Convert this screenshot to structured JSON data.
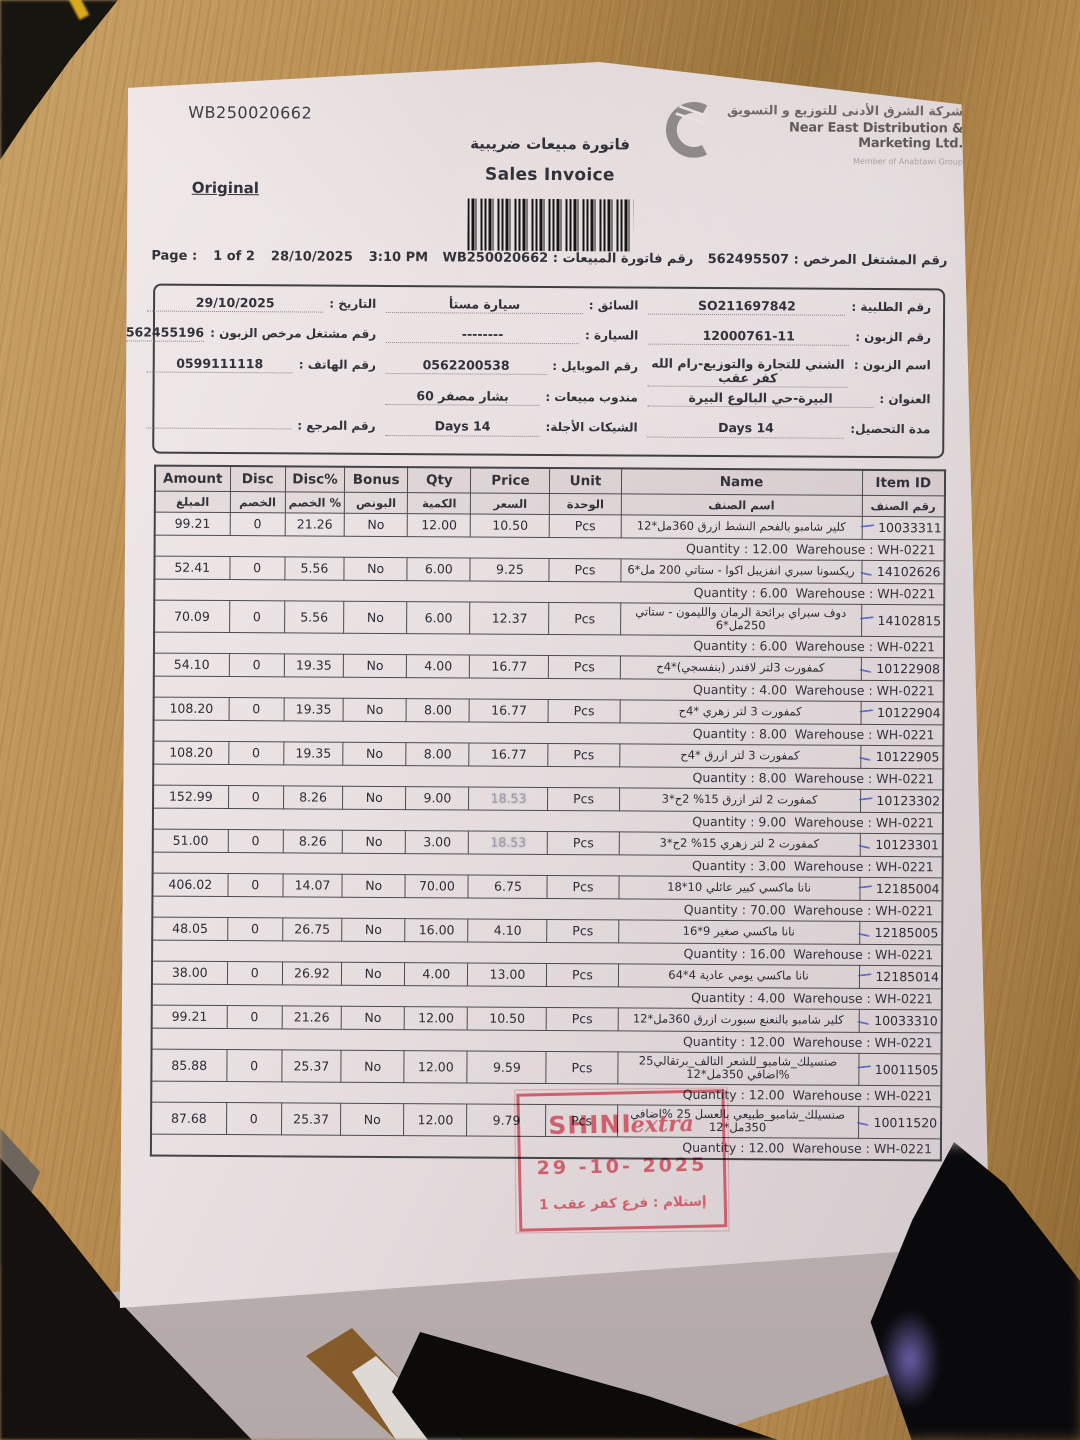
{
  "colors": {
    "ink": "#32323b",
    "stamp": "#cc5464",
    "pen": "#4353c4",
    "table-border": "#4c4c52",
    "paper-a": "#f1eae9",
    "paper-b": "#e7dee0",
    "paper-c": "#d3c9cc",
    "wood-a": "#b98e52",
    "wood-b": "#97713a",
    "wood-c": "#c9a268"
  },
  "paper": {
    "doc_number": "WB250020662",
    "copy_label": "Original",
    "title_ar": "فاتورة مبيعات ضريبية",
    "title_en": "Sales Invoice",
    "company": {
      "name_ar": "شركة الشرق الأدنى للتوزيع و التسويق",
      "name_en": "Near East Distribution & Marketing Ltd.",
      "member": "Member of Anabtawi Group"
    },
    "page_row": {
      "page_label": "Page :",
      "page_value": "1 of 2",
      "date": "28/10/2025",
      "time": "3:10 PM",
      "invoice_label": "رقم فاتورة المبيعات :",
      "invoice_value": "WB250020662",
      "dealer_label": "رقم المشتغل المرخص :",
      "dealer_value": "562495507"
    },
    "info_rows": [
      [
        {
          "label": "رقم الطلبية :",
          "value": "SO211697842"
        },
        {
          "label": "السائق :",
          "value": "سيارة مستأ"
        },
        {
          "label": "التاريخ :",
          "value": "29/10/2025"
        }
      ],
      [
        {
          "label": "رقم الزبون :",
          "value": "12000761-11"
        },
        {
          "label": "السيارة :",
          "value": "--------"
        },
        {
          "label": "رقم مشتغل مرخص الزبون :",
          "value": "562455196"
        }
      ],
      [
        {
          "label": "اسم الزبون :",
          "value": "الشني للتجارة والتوزيع-رام الله كفر عقب"
        },
        {
          "label": "رقم الموبايل :",
          "value": "0562200538"
        },
        {
          "label": "رقم الهاتف :",
          "value": "0599111118"
        }
      ],
      [
        {
          "label": "العنوان :",
          "value": "البيرة-حي البالوع البيرة"
        },
        {
          "label": "مندوب مبيعات :",
          "value": "بشار مصفر 60"
        },
        {
          "label": null,
          "value": null
        }
      ],
      [
        {
          "label": "مدة التحصيل:",
          "value": "14 Days"
        },
        {
          "label": "الشيكات الأجلة:",
          "value": "14 Days"
        },
        {
          "label": "رقم المرجع :",
          "value": ""
        }
      ]
    ],
    "table": {
      "headers_en": [
        "Amount",
        "Disc",
        "Disc%",
        "Bonus",
        "Qty",
        "Price",
        "Unit",
        "Name",
        "Item ID"
      ],
      "headers_ar": [
        "المبلغ",
        "الخصم",
        "% الخصم",
        "البونص",
        "الكمية",
        "السعر",
        "الوحدة",
        "اسم الصنف",
        "رقم الصنف"
      ],
      "rows": [
        {
          "amount": "99.21",
          "disc": "0",
          "discpct": "21.26",
          "bonus": "No",
          "qty": "12.00",
          "price": "10.50",
          "unit": "Pcs",
          "name": "كلير شامبو بالفحم النشط ازرق 360مل*12",
          "item_id": "10033311",
          "sub": "Quantity : 12.00  Warehouse : WH-0221",
          "faded_price": false
        },
        {
          "amount": "52.41",
          "disc": "0",
          "discpct": "5.56",
          "bonus": "No",
          "qty": "6.00",
          "price": "9.25",
          "unit": "Pcs",
          "name": "ريكسونا سبري انفزيبل اكوا - ستاتي 200 مل*6",
          "item_id": "14102626",
          "sub": "Quantity : 6.00  Warehouse : WH-0221",
          "faded_price": false
        },
        {
          "amount": "70.09",
          "disc": "0",
          "discpct": "5.56",
          "bonus": "No",
          "qty": "6.00",
          "price": "12.37",
          "unit": "Pcs",
          "name": "دوف سبراي برائحة الرمان والليمون - ستاتي 250مل*6",
          "item_id": "14102815",
          "sub": "Quantity : 6.00  Warehouse : WH-0221",
          "faded_price": false
        },
        {
          "amount": "54.10",
          "disc": "0",
          "discpct": "19.35",
          "bonus": "No",
          "qty": "4.00",
          "price": "16.77",
          "unit": "Pcs",
          "name": "كمفورت 3لتر لافندر (بنفسجي)*4ح",
          "item_id": "10122908",
          "sub": "Quantity : 4.00  Warehouse : WH-0221",
          "faded_price": false
        },
        {
          "amount": "108.20",
          "disc": "0",
          "discpct": "19.35",
          "bonus": "No",
          "qty": "8.00",
          "price": "16.77",
          "unit": "Pcs",
          "name": "كمفورت 3 لتر زهري *4ح",
          "item_id": "10122904",
          "sub": "Quantity : 8.00  Warehouse : WH-0221",
          "faded_price": false
        },
        {
          "amount": "108.20",
          "disc": "0",
          "discpct": "19.35",
          "bonus": "No",
          "qty": "8.00",
          "price": "16.77",
          "unit": "Pcs",
          "name": "كمفورت 3 لتر ازرق *4ح",
          "item_id": "10122905",
          "sub": "Quantity : 8.00  Warehouse : WH-0221",
          "faded_price": false
        },
        {
          "amount": "152.99",
          "disc": "0",
          "discpct": "8.26",
          "bonus": "No",
          "qty": "9.00",
          "price": "18.53",
          "unit": "Pcs",
          "name": "كمفورت 2 لتر ازرق 15% 2ح*3",
          "item_id": "10123302",
          "sub": "Quantity : 9.00  Warehouse : WH-0221",
          "faded_price": true
        },
        {
          "amount": "51.00",
          "disc": "0",
          "discpct": "8.26",
          "bonus": "No",
          "qty": "3.00",
          "price": "18.53",
          "unit": "Pcs",
          "name": "كمفورت 2 لتر زهري 15% 2ح*3",
          "item_id": "10123301",
          "sub": "Quantity : 3.00  Warehouse : WH-0221",
          "faded_price": true
        },
        {
          "amount": "406.02",
          "disc": "0",
          "discpct": "14.07",
          "bonus": "No",
          "qty": "70.00",
          "price": "6.75",
          "unit": "Pcs",
          "name": "نانا ماكسي كبير عائلي 10*18",
          "item_id": "12185004",
          "sub": "Quantity : 70.00  Warehouse : WH-0221",
          "faded_price": false
        },
        {
          "amount": "48.05",
          "disc": "0",
          "discpct": "26.75",
          "bonus": "No",
          "qty": "16.00",
          "price": "4.10",
          "unit": "Pcs",
          "name": "نانا ماكسي صغير 9*16",
          "item_id": "12185005",
          "sub": "Quantity : 16.00  Warehouse : WH-0221",
          "faded_price": false
        },
        {
          "amount": "38.00",
          "disc": "0",
          "discpct": "26.92",
          "bonus": "No",
          "qty": "4.00",
          "price": "13.00",
          "unit": "Pcs",
          "name": "نانا ماكسي يومي عادية 4*64",
          "item_id": "12185014",
          "sub": "Quantity : 4.00  Warehouse : WH-0221",
          "faded_price": false
        },
        {
          "amount": "99.21",
          "disc": "0",
          "discpct": "21.26",
          "bonus": "No",
          "qty": "12.00",
          "price": "10.50",
          "unit": "Pcs",
          "name": "كلير شامبو بالنعنع سبورت ازرق 360مل*12",
          "item_id": "10033310",
          "sub": "Quantity : 12.00  Warehouse : WH-0221",
          "faded_price": false
        },
        {
          "amount": "85.88",
          "disc": "0",
          "discpct": "25.37",
          "bonus": "No",
          "qty": "12.00",
          "price": "9.59",
          "unit": "Pcs",
          "name": "صنسيلك_شامبو_للشعر التالف_برتقالي25 %اضافي 350مل*12",
          "item_id": "10011505",
          "sub": "Quantity : 12.00  Warehouse : WH-0221",
          "faded_price": false
        },
        {
          "amount": "87.68",
          "disc": "0",
          "discpct": "25.37",
          "bonus": "No",
          "qty": "12.00",
          "price": "9.79",
          "unit": "Pcs",
          "name": "صنسيلك_شامبو_طبيعي بالعسل 25 %اضافي 350مل*12",
          "item_id": "10011520",
          "sub": "Quantity : 12.00  Warehouse : WH-0221",
          "faded_price": false
        }
      ]
    },
    "stamp": {
      "brand_main": "SHINI",
      "brand_script": "extra",
      "date": "29 -10- 2025",
      "received": "إستلام : فرع كفر عقب 1"
    }
  }
}
